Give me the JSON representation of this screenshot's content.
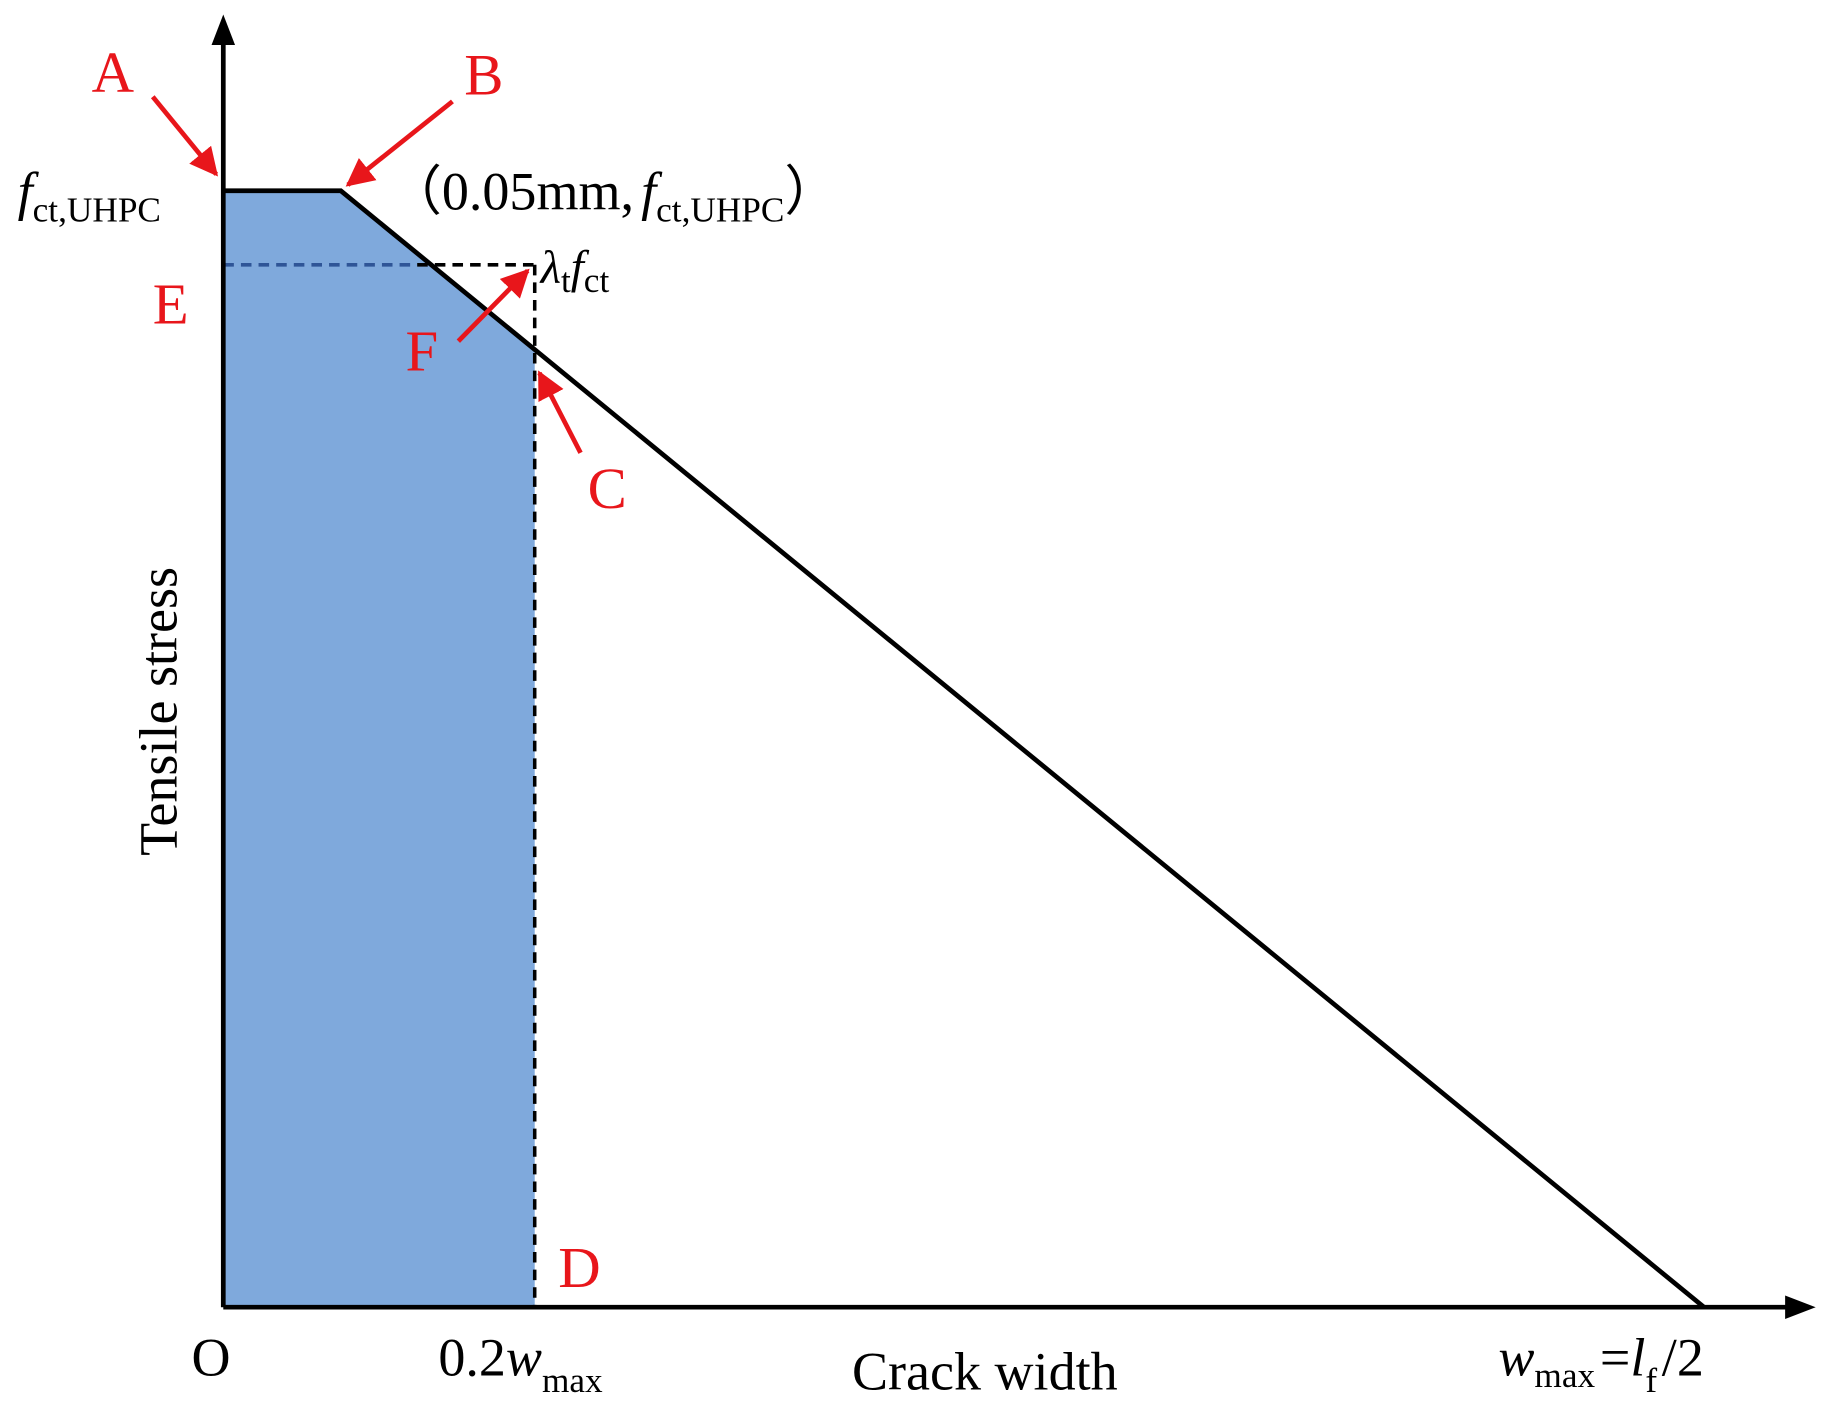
{
  "axes": {
    "y_label": "Tensile stress",
    "x_label": "Crack width"
  },
  "points": {
    "A": "A",
    "B": "B",
    "C": "C",
    "D": "D",
    "E": "E",
    "F": "F",
    "O": "O"
  },
  "labels": {
    "f_ct_uhpc": {
      "base": "f",
      "sub": "ct,UHPC"
    },
    "point_b": {
      "open": "（0.05mm,",
      "base": "f",
      "sub": "ct,UHPC",
      "close": "）"
    },
    "lambda": {
      "base1": "λ",
      "sub1": "t",
      "base2": "f",
      "sub2": "ct"
    },
    "x_mark": {
      "prefix": "0.2",
      "base": "w",
      "sub": "max"
    },
    "w_max": {
      "base": "w",
      "sub": "max",
      "eq": "=",
      "base2": "l",
      "sub2": "f",
      "tail": "/2"
    }
  }
}
